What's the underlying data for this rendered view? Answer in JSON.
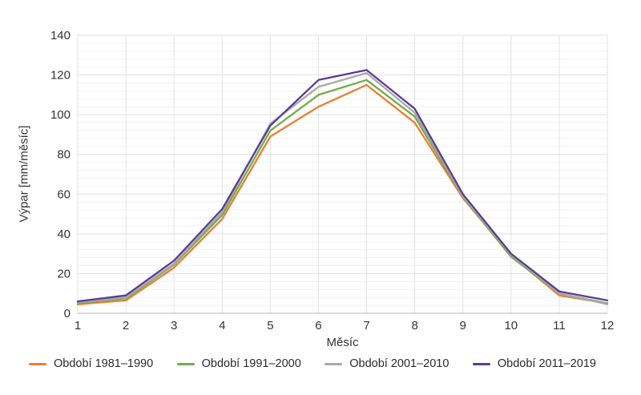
{
  "figure": {
    "background": "#ffffff",
    "grid_major_color": "#e0e0e0",
    "grid_minor_color": "#f2f2f2",
    "grid_vertical_color": "#e3e3e3",
    "axis_line_color": "#c4c4c4",
    "tick_label_color": "#333333"
  },
  "chart_data": {
    "type": "line",
    "title": "",
    "xlabel": "Měsíc",
    "ylabel": "Výpar [mm/měsíc]",
    "x": [
      1,
      2,
      3,
      4,
      5,
      6,
      7,
      8,
      9,
      10,
      11,
      12
    ],
    "x_tick_labels": [
      "1",
      "2",
      "3",
      "4",
      "5",
      "6",
      "7",
      "8",
      "9",
      "10",
      "11",
      "12"
    ],
    "xlim": [
      1,
      12
    ],
    "ylim": [
      0,
      140
    ],
    "y_ticks": [
      0,
      20,
      40,
      60,
      80,
      100,
      120,
      140
    ],
    "y_minor_step": 4,
    "grid": true,
    "legend_position": "bottom",
    "series": [
      {
        "name": "Období 1981–1990",
        "color": "#ED7D31",
        "values": [
          4.5,
          6.5,
          23,
          47.5,
          89,
          104,
          115,
          96,
          58,
          29,
          9,
          5
        ]
      },
      {
        "name": "Období 1991–2000",
        "color": "#70AD47",
        "values": [
          5,
          7.5,
          24.5,
          49.5,
          92,
          110,
          117.5,
          99,
          58.5,
          28.5,
          10,
          5
        ]
      },
      {
        "name": "Období 2001–2010",
        "color": "#A9A9A9",
        "values": [
          5.5,
          8,
          25,
          51,
          95.5,
          114,
          121,
          101,
          59,
          29.5,
          10,
          4.5
        ]
      },
      {
        "name": "Období 2011–2019",
        "color": "#5C3B97",
        "values": [
          6,
          9,
          26.5,
          52.5,
          94.5,
          117.5,
          122.5,
          103,
          60,
          30,
          11,
          6.5
        ]
      }
    ]
  }
}
